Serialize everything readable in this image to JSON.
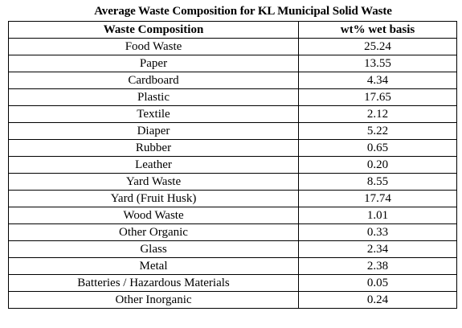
{
  "title": "Average Waste Composition for KL Municipal Solid Waste",
  "table": {
    "headers": [
      "Waste Composition",
      "wt% wet basis"
    ],
    "rows": [
      [
        "Food Waste",
        "25.24"
      ],
      [
        "Paper",
        "13.55"
      ],
      [
        "Cardboard",
        "4.34"
      ],
      [
        "Plastic",
        "17.65"
      ],
      [
        "Textile",
        "2.12"
      ],
      [
        "Diaper",
        "5.22"
      ],
      [
        "Rubber",
        "0.65"
      ],
      [
        "Leather",
        "0.20"
      ],
      [
        "Yard Waste",
        "8.55"
      ],
      [
        "Yard (Fruit Husk)",
        "17.74"
      ],
      [
        "Wood Waste",
        "1.01"
      ],
      [
        "Other Organic",
        "0.33"
      ],
      [
        "Glass",
        "2.34"
      ],
      [
        "Metal",
        "2.38"
      ],
      [
        "Batteries / Hazardous Materials",
        "0.05"
      ],
      [
        "Other Inorganic",
        "0.24"
      ]
    ]
  }
}
